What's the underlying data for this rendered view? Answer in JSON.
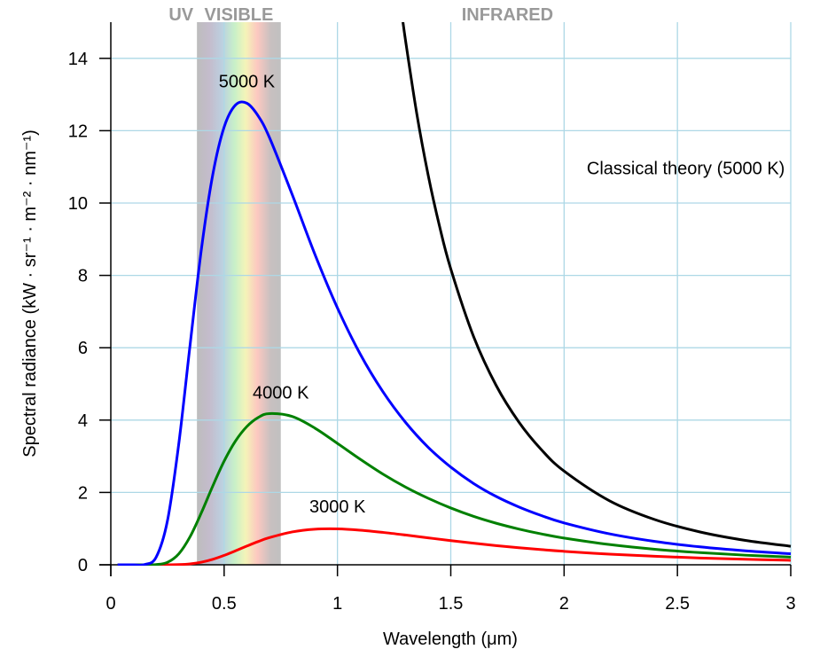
{
  "chart_data": {
    "type": "line",
    "title": "",
    "xlabel": "Wavelength (μm)",
    "ylabel": "Spectral radiance (kW · sr⁻¹ · m⁻² · nm⁻¹)",
    "xlim": [
      0,
      3
    ],
    "ylim": [
      0,
      15
    ],
    "grid": true,
    "x_ticks": [
      0,
      0.5,
      1,
      1.5,
      2,
      2.5,
      3
    ],
    "x_tick_labels": [
      "0",
      "0.5",
      "1",
      "1.5",
      "2",
      "2.5",
      "3"
    ],
    "y_ticks": [
      0,
      2,
      4,
      6,
      8,
      10,
      12,
      14
    ],
    "y_tick_labels": [
      "0",
      "2",
      "4",
      "6",
      "8",
      "10",
      "12",
      "14"
    ],
    "regions": [
      {
        "label": "UV",
        "from": 0,
        "to": 0.38
      },
      {
        "label": "VISIBLE",
        "from": 0.38,
        "to": 0.75
      },
      {
        "label": "INFRARED",
        "from": 0.75,
        "to": 3
      }
    ],
    "x": [
      0.03,
      0.1,
      0.15,
      0.2,
      0.25,
      0.3,
      0.35,
      0.4,
      0.45,
      0.5,
      0.55,
      0.6,
      0.65,
      0.7,
      0.8,
      0.9,
      1.0,
      1.1,
      1.2,
      1.3,
      1.4,
      1.5,
      1.6,
      1.7,
      1.8,
      1.9,
      2.0,
      2.2,
      2.4,
      2.6,
      2.8,
      3.0
    ],
    "series": [
      {
        "name": "3000 K",
        "label": "3000 K",
        "color": "#ff0000",
        "label_at": [
          1.0,
          1.45
        ],
        "values": [
          0,
          0,
          0,
          0,
          0.0006,
          0.0056,
          0.0254,
          0.0722,
          0.152,
          0.26,
          0.386,
          0.517,
          0.642,
          0.751,
          0.908,
          0.983,
          0.993,
          0.957,
          0.896,
          0.823,
          0.745,
          0.668,
          0.597,
          0.531,
          0.472,
          0.419,
          0.372,
          0.294,
          0.235,
          0.188,
          0.152,
          0.124
        ]
      },
      {
        "name": "4000 K",
        "label": "4000 K",
        "color": "#008000",
        "label_at": [
          0.75,
          4.6
        ],
        "values": [
          0,
          0,
          0,
          0.0058,
          0.0685,
          0.304,
          0.78,
          1.445,
          2.18,
          2.865,
          3.42,
          3.82,
          4.07,
          4.18,
          4.1,
          3.78,
          3.355,
          2.92,
          2.51,
          2.15,
          1.84,
          1.57,
          1.34,
          1.149,
          0.989,
          0.853,
          0.738,
          0.56,
          0.43,
          0.336,
          0.265,
          0.2115
        ]
      },
      {
        "name": "5000 K",
        "label": "5000 K",
        "color": "#0000ff",
        "label_at": [
          0.6,
          13.2
        ],
        "values": [
          0,
          0,
          0.0073,
          0.209,
          1.22,
          3.35,
          6.09,
          8.74,
          10.79,
          12.1,
          12.71,
          12.76,
          12.41,
          11.81,
          10.24,
          8.59,
          7.1,
          5.83,
          4.79,
          3.94,
          3.25,
          2.7,
          2.25,
          1.89,
          1.6,
          1.36,
          1.157,
          0.856,
          0.646,
          0.495,
          0.386,
          0.305
        ]
      },
      {
        "name": "Classical theory (5000 K)",
        "label": "Classical theory (5000 K)",
        "color": "#000000",
        "label_at": [
          2.1,
          10.8
        ],
        "x": [
          1.28,
          1.3,
          1.35,
          1.4,
          1.45,
          1.5,
          1.6,
          1.7,
          1.8,
          1.9,
          2.0,
          2.2,
          2.4,
          2.6,
          2.8,
          3.0
        ],
        "values": [
          15.43,
          14.51,
          12.47,
          10.78,
          9.37,
          8.18,
          6.32,
          4.96,
          3.95,
          3.18,
          2.59,
          1.77,
          1.25,
          0.907,
          0.674,
          0.512
        ]
      }
    ]
  }
}
